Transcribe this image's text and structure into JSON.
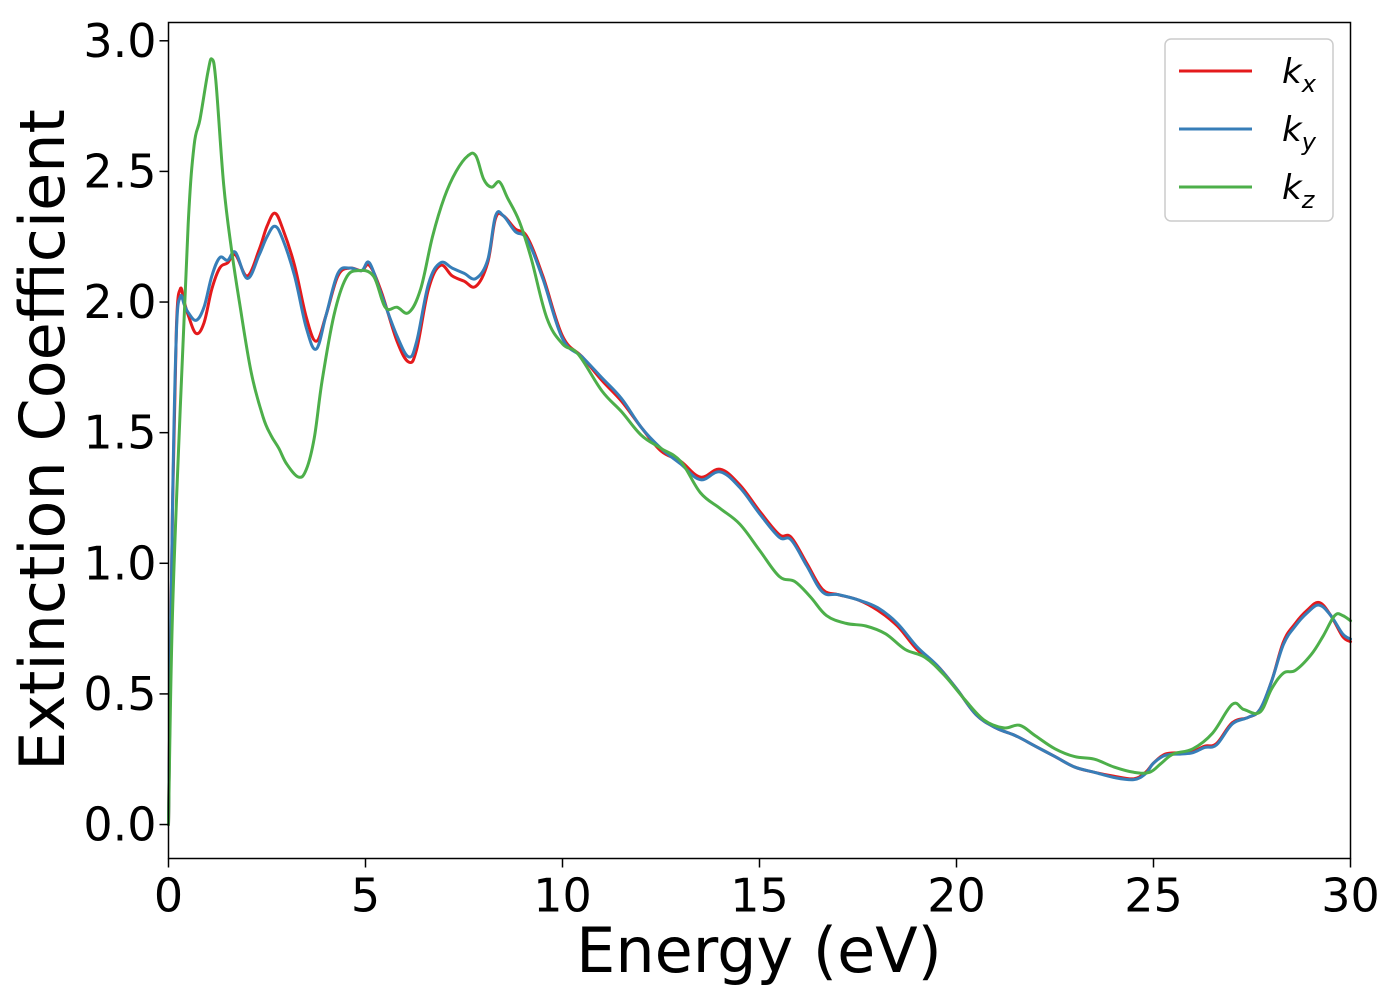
{
  "chart_data": {
    "type": "line",
    "xlabel": "Energy (eV)",
    "ylabel": "Extinction Coefficient",
    "xlim": [
      0,
      30
    ],
    "ylim": [
      -0.13,
      3.07
    ],
    "x_ticks": [
      0,
      5,
      10,
      15,
      20,
      25,
      30
    ],
    "x_tick_labels": [
      "0",
      "5",
      "10",
      "15",
      "20",
      "25",
      "30"
    ],
    "y_ticks": [
      0.0,
      0.5,
      1.0,
      1.5,
      2.0,
      2.5,
      3.0
    ],
    "y_tick_labels": [
      "0.0",
      "0.5",
      "1.0",
      "1.5",
      "2.0",
      "2.5",
      "3.0"
    ],
    "grid": false,
    "legend_position": "top-right",
    "series": [
      {
        "name": "k_x",
        "legend_main": "k",
        "legend_sub": "x",
        "color": "#e41a1c",
        "points": [
          [
            0.0,
            0.0
          ],
          [
            0.1,
            1.2
          ],
          [
            0.2,
            1.9
          ],
          [
            0.3,
            2.05
          ],
          [
            0.4,
            2.0
          ],
          [
            0.5,
            1.95
          ],
          [
            0.7,
            1.88
          ],
          [
            0.9,
            1.92
          ],
          [
            1.1,
            2.05
          ],
          [
            1.3,
            2.13
          ],
          [
            1.5,
            2.15
          ],
          [
            1.7,
            2.18
          ],
          [
            2.0,
            2.1
          ],
          [
            2.3,
            2.2
          ],
          [
            2.5,
            2.29
          ],
          [
            2.7,
            2.34
          ],
          [
            2.9,
            2.28
          ],
          [
            3.2,
            2.14
          ],
          [
            3.5,
            1.94
          ],
          [
            3.75,
            1.85
          ],
          [
            4.0,
            1.95
          ],
          [
            4.3,
            2.1
          ],
          [
            4.6,
            2.13
          ],
          [
            4.9,
            2.12
          ],
          [
            5.1,
            2.14
          ],
          [
            5.4,
            2.04
          ],
          [
            5.8,
            1.85
          ],
          [
            6.1,
            1.77
          ],
          [
            6.3,
            1.82
          ],
          [
            6.6,
            2.05
          ],
          [
            6.9,
            2.14
          ],
          [
            7.2,
            2.1
          ],
          [
            7.5,
            2.08
          ],
          [
            7.8,
            2.06
          ],
          [
            8.1,
            2.15
          ],
          [
            8.3,
            2.32
          ],
          [
            8.5,
            2.33
          ],
          [
            8.8,
            2.28
          ],
          [
            9.1,
            2.25
          ],
          [
            9.5,
            2.1
          ],
          [
            10.0,
            1.87
          ],
          [
            10.5,
            1.79
          ],
          [
            11.0,
            1.7
          ],
          [
            11.5,
            1.62
          ],
          [
            12.0,
            1.52
          ],
          [
            12.5,
            1.43
          ],
          [
            13.0,
            1.39
          ],
          [
            13.5,
            1.33
          ],
          [
            14.0,
            1.36
          ],
          [
            14.5,
            1.3
          ],
          [
            15.0,
            1.2
          ],
          [
            15.5,
            1.11
          ],
          [
            15.8,
            1.1
          ],
          [
            16.2,
            1.0
          ],
          [
            16.6,
            0.9
          ],
          [
            17.0,
            0.88
          ],
          [
            17.5,
            0.86
          ],
          [
            18.0,
            0.82
          ],
          [
            18.5,
            0.76
          ],
          [
            19.0,
            0.67
          ],
          [
            19.5,
            0.61
          ],
          [
            20.0,
            0.52
          ],
          [
            20.5,
            0.42
          ],
          [
            21.0,
            0.37
          ],
          [
            21.5,
            0.34
          ],
          [
            22.0,
            0.3
          ],
          [
            22.5,
            0.26
          ],
          [
            23.0,
            0.22
          ],
          [
            23.5,
            0.2
          ],
          [
            24.0,
            0.185
          ],
          [
            24.5,
            0.175
          ],
          [
            24.8,
            0.2
          ],
          [
            25.0,
            0.235
          ],
          [
            25.3,
            0.27
          ],
          [
            25.7,
            0.275
          ],
          [
            26.0,
            0.28
          ],
          [
            26.3,
            0.3
          ],
          [
            26.6,
            0.31
          ],
          [
            27.0,
            0.39
          ],
          [
            27.4,
            0.41
          ],
          [
            27.7,
            0.44
          ],
          [
            28.0,
            0.55
          ],
          [
            28.3,
            0.7
          ],
          [
            28.6,
            0.77
          ],
          [
            28.9,
            0.82
          ],
          [
            29.2,
            0.85
          ],
          [
            29.5,
            0.8
          ],
          [
            29.8,
            0.72
          ],
          [
            30.0,
            0.7
          ]
        ]
      },
      {
        "name": "k_y",
        "legend_main": "k",
        "legend_sub": "y",
        "color": "#377eb8",
        "points": [
          [
            0.0,
            0.0
          ],
          [
            0.1,
            1.2
          ],
          [
            0.2,
            1.88
          ],
          [
            0.3,
            2.02
          ],
          [
            0.4,
            1.99
          ],
          [
            0.5,
            1.96
          ],
          [
            0.7,
            1.93
          ],
          [
            0.9,
            1.98
          ],
          [
            1.1,
            2.1
          ],
          [
            1.3,
            2.17
          ],
          [
            1.5,
            2.16
          ],
          [
            1.7,
            2.19
          ],
          [
            2.0,
            2.09
          ],
          [
            2.3,
            2.18
          ],
          [
            2.5,
            2.25
          ],
          [
            2.7,
            2.29
          ],
          [
            2.9,
            2.24
          ],
          [
            3.2,
            2.1
          ],
          [
            3.5,
            1.9
          ],
          [
            3.75,
            1.82
          ],
          [
            4.0,
            1.95
          ],
          [
            4.3,
            2.11
          ],
          [
            4.6,
            2.13
          ],
          [
            4.9,
            2.12
          ],
          [
            5.1,
            2.15
          ],
          [
            5.4,
            2.03
          ],
          [
            5.8,
            1.87
          ],
          [
            6.1,
            1.79
          ],
          [
            6.3,
            1.85
          ],
          [
            6.6,
            2.07
          ],
          [
            6.9,
            2.15
          ],
          [
            7.2,
            2.13
          ],
          [
            7.5,
            2.11
          ],
          [
            7.8,
            2.09
          ],
          [
            8.1,
            2.16
          ],
          [
            8.3,
            2.33
          ],
          [
            8.5,
            2.33
          ],
          [
            8.8,
            2.27
          ],
          [
            9.1,
            2.24
          ],
          [
            9.5,
            2.09
          ],
          [
            10.0,
            1.86
          ],
          [
            10.5,
            1.79
          ],
          [
            11.0,
            1.71
          ],
          [
            11.5,
            1.63
          ],
          [
            12.0,
            1.52
          ],
          [
            12.5,
            1.44
          ],
          [
            13.0,
            1.38
          ],
          [
            13.5,
            1.32
          ],
          [
            14.0,
            1.35
          ],
          [
            14.5,
            1.29
          ],
          [
            15.0,
            1.19
          ],
          [
            15.5,
            1.1
          ],
          [
            15.8,
            1.09
          ],
          [
            16.2,
            0.99
          ],
          [
            16.6,
            0.89
          ],
          [
            17.0,
            0.88
          ],
          [
            17.5,
            0.86
          ],
          [
            18.0,
            0.83
          ],
          [
            18.5,
            0.77
          ],
          [
            19.0,
            0.68
          ],
          [
            19.5,
            0.61
          ],
          [
            20.0,
            0.52
          ],
          [
            20.5,
            0.42
          ],
          [
            21.0,
            0.37
          ],
          [
            21.5,
            0.34
          ],
          [
            22.0,
            0.3
          ],
          [
            22.5,
            0.26
          ],
          [
            23.0,
            0.22
          ],
          [
            23.5,
            0.2
          ],
          [
            24.0,
            0.18
          ],
          [
            24.5,
            0.172
          ],
          [
            24.8,
            0.195
          ],
          [
            25.0,
            0.235
          ],
          [
            25.3,
            0.265
          ],
          [
            25.7,
            0.27
          ],
          [
            26.0,
            0.275
          ],
          [
            26.3,
            0.295
          ],
          [
            26.6,
            0.305
          ],
          [
            27.0,
            0.385
          ],
          [
            27.4,
            0.41
          ],
          [
            27.7,
            0.44
          ],
          [
            28.0,
            0.55
          ],
          [
            28.3,
            0.69
          ],
          [
            28.6,
            0.76
          ],
          [
            28.9,
            0.81
          ],
          [
            29.2,
            0.84
          ],
          [
            29.5,
            0.8
          ],
          [
            29.8,
            0.73
          ],
          [
            30.0,
            0.71
          ]
        ]
      },
      {
        "name": "k_z",
        "legend_main": "k",
        "legend_sub": "z",
        "color": "#4daf4a",
        "points": [
          [
            0.0,
            0.0
          ],
          [
            0.1,
            0.8
          ],
          [
            0.3,
            1.6
          ],
          [
            0.5,
            2.3
          ],
          [
            0.65,
            2.6
          ],
          [
            0.8,
            2.7
          ],
          [
            1.0,
            2.88
          ],
          [
            1.1,
            2.93
          ],
          [
            1.2,
            2.85
          ],
          [
            1.4,
            2.45
          ],
          [
            1.6,
            2.2
          ],
          [
            1.8,
            2.0
          ],
          [
            2.1,
            1.73
          ],
          [
            2.4,
            1.56
          ],
          [
            2.6,
            1.49
          ],
          [
            2.8,
            1.44
          ],
          [
            3.0,
            1.38
          ],
          [
            3.3,
            1.33
          ],
          [
            3.5,
            1.36
          ],
          [
            3.7,
            1.48
          ],
          [
            3.9,
            1.7
          ],
          [
            4.2,
            1.95
          ],
          [
            4.5,
            2.09
          ],
          [
            4.8,
            2.12
          ],
          [
            5.2,
            2.1
          ],
          [
            5.5,
            1.98
          ],
          [
            5.8,
            1.98
          ],
          [
            6.1,
            1.96
          ],
          [
            6.4,
            2.05
          ],
          [
            6.7,
            2.25
          ],
          [
            7.0,
            2.4
          ],
          [
            7.3,
            2.5
          ],
          [
            7.6,
            2.56
          ],
          [
            7.8,
            2.56
          ],
          [
            8.0,
            2.47
          ],
          [
            8.2,
            2.44
          ],
          [
            8.4,
            2.46
          ],
          [
            8.6,
            2.4
          ],
          [
            8.9,
            2.31
          ],
          [
            9.2,
            2.17
          ],
          [
            9.6,
            1.94
          ],
          [
            10.0,
            1.84
          ],
          [
            10.4,
            1.8
          ],
          [
            11.0,
            1.66
          ],
          [
            11.5,
            1.58
          ],
          [
            12.0,
            1.49
          ],
          [
            12.5,
            1.44
          ],
          [
            13.0,
            1.39
          ],
          [
            13.5,
            1.27
          ],
          [
            14.0,
            1.21
          ],
          [
            14.5,
            1.15
          ],
          [
            15.0,
            1.05
          ],
          [
            15.5,
            0.95
          ],
          [
            15.9,
            0.93
          ],
          [
            16.3,
            0.87
          ],
          [
            16.7,
            0.8
          ],
          [
            17.2,
            0.77
          ],
          [
            17.7,
            0.76
          ],
          [
            18.2,
            0.73
          ],
          [
            18.7,
            0.67
          ],
          [
            19.2,
            0.64
          ],
          [
            19.7,
            0.57
          ],
          [
            20.2,
            0.48
          ],
          [
            20.7,
            0.4
          ],
          [
            21.2,
            0.37
          ],
          [
            21.6,
            0.38
          ],
          [
            22.0,
            0.34
          ],
          [
            22.5,
            0.29
          ],
          [
            23.0,
            0.26
          ],
          [
            23.5,
            0.25
          ],
          [
            24.0,
            0.22
          ],
          [
            24.5,
            0.2
          ],
          [
            24.9,
            0.2
          ],
          [
            25.2,
            0.235
          ],
          [
            25.5,
            0.27
          ],
          [
            26.0,
            0.29
          ],
          [
            26.5,
            0.35
          ],
          [
            27.0,
            0.46
          ],
          [
            27.3,
            0.44
          ],
          [
            27.7,
            0.43
          ],
          [
            28.0,
            0.52
          ],
          [
            28.3,
            0.58
          ],
          [
            28.6,
            0.59
          ],
          [
            29.0,
            0.65
          ],
          [
            29.3,
            0.72
          ],
          [
            29.6,
            0.8
          ],
          [
            29.8,
            0.8
          ],
          [
            30.0,
            0.78
          ]
        ]
      }
    ]
  }
}
